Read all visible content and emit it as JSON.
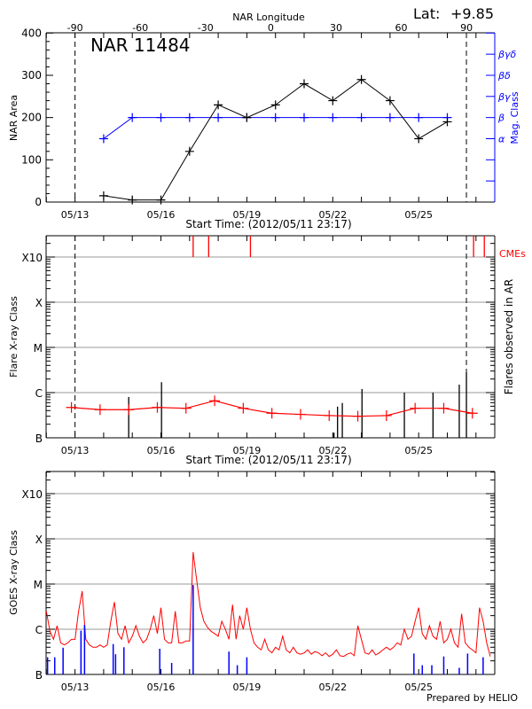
{
  "colors": {
    "area": "#000000",
    "mag_class": "#0000ff",
    "flares_avg": "#ff0000",
    "cme": "#ff0000",
    "goes_long": "#ff0000",
    "goes_short": "#0000ff",
    "grid": "#999999"
  },
  "footer": "Prepared by HELIO",
  "chart_data": [
    {
      "type": "line",
      "title": "NAR 11484",
      "lat_label": "Lat:",
      "lat_value": "+9.85",
      "top_axis_label": "NAR Longitude",
      "top_axis_ticks": [
        "-90",
        "-60",
        "-30",
        "0",
        "30",
        "60",
        "90"
      ],
      "xlabel": "Start Time: (2012/05/11 23:17)",
      "x_ticks": [
        "05/13",
        "05/16",
        "05/19",
        "05/22",
        "05/25"
      ],
      "ylabel": "NAR Area",
      "ylim": [
        0,
        400
      ],
      "y_ticks": [
        "0",
        "100",
        "200",
        "300",
        "400"
      ],
      "y2label": "Mag. Class",
      "y2_ticks": [
        {
          "value": 150,
          "label": "α"
        },
        {
          "value": 200,
          "label": "β"
        },
        {
          "value": 250,
          "label": "βγ"
        },
        {
          "value": 300,
          "label": "βδ"
        },
        {
          "value": 350,
          "label": "βγδ"
        }
      ],
      "limb_lines": [
        "2012-05-13 00:00",
        "2012-05-26 16:00"
      ],
      "area": {
        "x": [
          "2012-05-14",
          "2012-05-15",
          "2012-05-16",
          "2012-05-17",
          "2012-05-18",
          "2012-05-19",
          "2012-05-20",
          "2012-05-21",
          "2012-05-22",
          "2012-05-23",
          "2012-05-24",
          "2012-05-25",
          "2012-05-26"
        ],
        "values": [
          15,
          5,
          5,
          120,
          230,
          200,
          230,
          280,
          240,
          290,
          240,
          150,
          190
        ]
      },
      "mag_class": {
        "x": [
          "2012-05-14",
          "2012-05-15",
          "2012-05-16",
          "2012-05-17",
          "2012-05-18",
          "2012-05-19",
          "2012-05-20",
          "2012-05-21",
          "2012-05-22",
          "2012-05-23",
          "2012-05-24",
          "2012-05-25",
          "2012-05-26"
        ],
        "values": [
          "α",
          "β",
          "β",
          "β",
          "β",
          "β",
          "β",
          "β",
          "β",
          "β",
          "β",
          "β",
          "β"
        ]
      }
    },
    {
      "type": "line",
      "xlabel": "Start Time: (2012/05/11 23:17)",
      "x_ticks": [
        "05/13",
        "05/16",
        "05/19",
        "05/22",
        "05/25"
      ],
      "ylabel": "Flare X-ray Class",
      "y2label": "Flares observed in AR",
      "y_scale": "log",
      "y_ticks": [
        "B",
        "C",
        "M",
        "X",
        "X10"
      ],
      "cme_label": "CMEs",
      "grid": true,
      "limb_lines": [
        "2012-05-13 00:00",
        "2012-05-26 16:00"
      ],
      "flare_average": {
        "x": [
          "2012-05-12 21:00",
          "2012-05-13 21:00",
          "2012-05-14 21:00",
          "2012-05-15 21:00",
          "2012-05-16 21:00",
          "2012-05-17 21:00",
          "2012-05-18 21:00",
          "2012-05-19 21:00",
          "2012-05-20 21:00",
          "2012-05-21 21:00",
          "2012-05-22 21:00",
          "2012-05-23 21:00",
          "2012-05-24 21:00",
          "2012-05-25 21:00",
          "2012-05-26 21:00"
        ],
        "values": [
          "B4.7",
          "B4.2",
          "B4.2",
          "B4.7",
          "B4.5",
          "B6.6",
          "B4.5",
          "B3.5",
          "B3.3",
          "B3.1",
          "B3.0",
          "B3.1",
          "B4.5",
          "B4.5",
          "B3.5"
        ]
      },
      "flares": [
        {
          "time": "2012-05-14 21:00",
          "class": "B8.0"
        },
        {
          "time": "2012-05-16 00:30",
          "class": "C1.7"
        },
        {
          "time": "2012-05-22 01:00",
          "class": "B1.3"
        },
        {
          "time": "2012-05-22 04:00",
          "class": "B4.9"
        },
        {
          "time": "2012-05-22 08:00",
          "class": "B5.9"
        },
        {
          "time": "2012-05-23 00:30",
          "class": "C1.2"
        },
        {
          "time": "2012-05-24 12:00",
          "class": "C1.0"
        },
        {
          "time": "2012-05-25 12:00",
          "class": "C1.0"
        },
        {
          "time": "2012-05-26 10:00",
          "class": "C1.5"
        },
        {
          "time": "2012-05-26 16:00",
          "class": "C2.8"
        }
      ],
      "cmes": [
        "2012-05-17 03:00",
        "2012-05-17 16:00",
        "2012-05-19 03:00",
        "2012-05-26 22:00",
        "2012-05-27 07:00"
      ]
    },
    {
      "type": "line",
      "x_ticks": [
        "05/13",
        "05/16",
        "05/19",
        "05/22",
        "05/25"
      ],
      "ylabel": "GOES X-ray Class",
      "y_scale": "log",
      "y_ticks": [
        "B",
        "C",
        "M",
        "X",
        "X10"
      ],
      "grid": true,
      "long_channel": {
        "start": "2012-05-12 00:00",
        "step_hours": 3,
        "unit": "W/m^2",
        "values": [
          2.5e-06,
          9e-07,
          6e-07,
          1.2e-06,
          5e-07,
          4.5e-07,
          5e-07,
          6e-07,
          6e-07,
          2.5e-06,
          7e-06,
          6e-07,
          4.5e-07,
          4e-07,
          4e-07,
          4.5e-07,
          4e-07,
          4.5e-07,
          1.5e-06,
          4e-06,
          8e-07,
          6e-07,
          1.2e-06,
          5e-07,
          7e-07,
          1.2e-06,
          7e-07,
          5e-07,
          6e-07,
          1e-06,
          2e-06,
          8e-07,
          3e-06,
          6e-07,
          5e-07,
          5e-07,
          2.5e-06,
          5e-07,
          5e-07,
          5.5e-07,
          5.5e-07,
          5.1e-05,
          1.2e-05,
          3e-06,
          1.5e-06,
          1.1e-06,
          9e-07,
          8e-07,
          7e-07,
          1.5e-06,
          1e-06,
          6e-07,
          3.5e-06,
          6e-07,
          2e-06,
          1e-06,
          3e-06,
          1e-06,
          5e-07,
          4e-07,
          3.5e-07,
          6e-07,
          3.5e-07,
          3e-07,
          4e-07,
          3.5e-07,
          7e-07,
          3.5e-07,
          3e-07,
          4e-07,
          3e-07,
          2.8e-07,
          3e-07,
          3.5e-07,
          2.8e-07,
          3.2e-07,
          3e-07,
          2.6e-07,
          3e-07,
          2.5e-07,
          2.8e-07,
          3.5e-07,
          2.6e-07,
          2.5e-07,
          2.8e-07,
          3e-07,
          2.6e-07,
          1.2e-06,
          6e-07,
          3e-07,
          2.8e-07,
          3.5e-07,
          2.7e-07,
          3e-07,
          3.5e-07,
          4e-07,
          3.5e-07,
          4e-07,
          5e-07,
          4.5e-07,
          1e-06,
          6e-07,
          7e-07,
          1.5e-06,
          3e-06,
          8e-07,
          6e-07,
          1.2e-06,
          7e-07,
          6e-07,
          1.5e-06,
          5e-07,
          6e-07,
          1e-06,
          5e-07,
          4e-07,
          2.2e-06,
          5e-07,
          4e-07,
          3.5e-07,
          3e-07,
          3e-06,
          1.5e-06,
          5e-07,
          2.5e-07
        ]
      },
      "short_channel_peaks": [
        {
          "time": "2012-05-12 01:00",
          "flux": 2.4e-07
        },
        {
          "time": "2012-05-12 07:00",
          "flux": 2.4e-07
        },
        {
          "time": "2012-05-12 14:00",
          "flux": 3.9e-07
        },
        {
          "time": "2012-05-13 05:00",
          "flux": 9.3e-07
        },
        {
          "time": "2012-05-13 08:00",
          "flux": 1.25e-06
        },
        {
          "time": "2012-05-14 08:00",
          "flux": 4.7e-07
        },
        {
          "time": "2012-05-14 10:00",
          "flux": 2.8e-07
        },
        {
          "time": "2012-05-14 17:00",
          "flux": 4e-07
        },
        {
          "time": "2012-05-15 23:00",
          "flux": 3.7e-07
        },
        {
          "time": "2012-05-16 09:00",
          "flux": 1.8e-07
        },
        {
          "time": "2012-05-17 03:00",
          "flux": 9.5e-06
        },
        {
          "time": "2012-05-18 09:00",
          "flux": 3.2e-07
        },
        {
          "time": "2012-05-18 16:00",
          "flux": 1.6e-07
        },
        {
          "time": "2012-05-19 00:00",
          "flux": 2.4e-07
        },
        {
          "time": "2012-05-24 20:00",
          "flux": 2.9e-07
        },
        {
          "time": "2012-05-25 03:00",
          "flux": 1.6e-07
        },
        {
          "time": "2012-05-25 11:00",
          "flux": 1.6e-07
        },
        {
          "time": "2012-05-25 21:00",
          "flux": 2.5e-07
        },
        {
          "time": "2012-05-26 10:00",
          "flux": 1.4e-07
        },
        {
          "time": "2012-05-26 17:00",
          "flux": 2.9e-07
        },
        {
          "time": "2012-05-27 06:00",
          "flux": 2.4e-07
        }
      ]
    }
  ]
}
